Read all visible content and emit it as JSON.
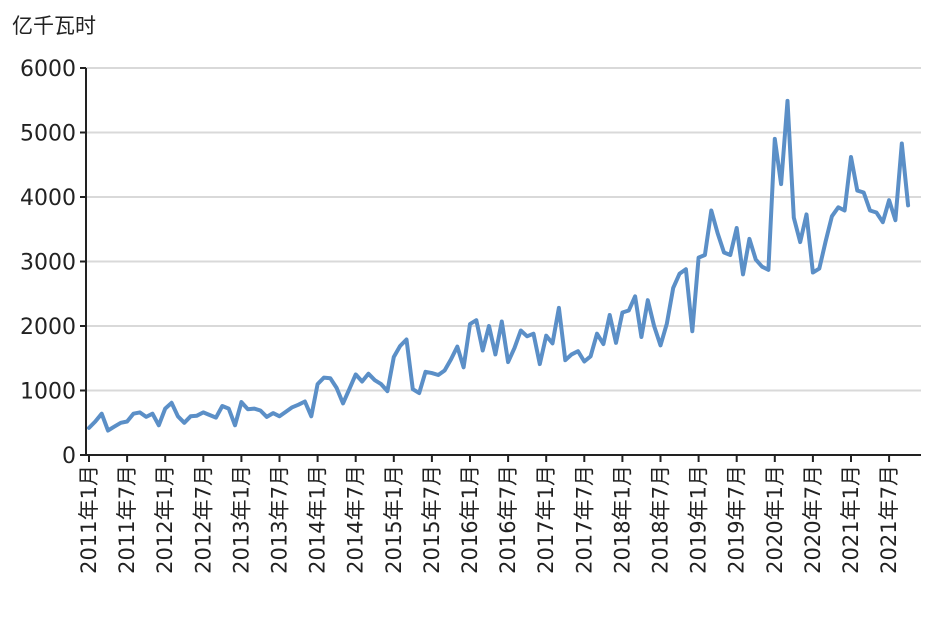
{
  "chart_data": {
    "type": "line",
    "unit_label": "亿千瓦时",
    "ylim": [
      0,
      6000
    ],
    "y_ticks": [
      "0",
      "1000",
      "2000",
      "3000",
      "4000",
      "5000",
      "6000"
    ],
    "y_tick_values": [
      0,
      1000,
      2000,
      3000,
      4000,
      5000,
      6000
    ],
    "grid": true,
    "x_tick_labels": [
      "2011年1月",
      "2011年7月",
      "2012年1月",
      "2012年7月",
      "2013年1月",
      "2013年7月",
      "2014年1月",
      "2014年7月",
      "2015年1月",
      "2015年7月",
      "2016年1月",
      "2016年7月",
      "2017年1月",
      "2017年7月",
      "2018年1月",
      "2018年7月",
      "2019年1月",
      "2019年7月",
      "2020年1月",
      "2020年7月",
      "2021年1月",
      "2021年7月"
    ],
    "line_color": "#5B8FC7",
    "series": [
      {
        "x": [
          "2011-01",
          "2011-02",
          "2011-03",
          "2011-04",
          "2011-05",
          "2011-06",
          "2011-07",
          "2011-08",
          "2011-09",
          "2011-10",
          "2011-11",
          "2011-12",
          "2012-01",
          "2012-02",
          "2012-03",
          "2012-04",
          "2012-05",
          "2012-06",
          "2012-07",
          "2012-08",
          "2012-09",
          "2012-10",
          "2012-11",
          "2012-12",
          "2013-01",
          "2013-02",
          "2013-03",
          "2013-04",
          "2013-05",
          "2013-06",
          "2013-07",
          "2013-08",
          "2013-09",
          "2013-10",
          "2013-11",
          "2013-12",
          "2014-01",
          "2014-02",
          "2014-03",
          "2014-04",
          "2014-05",
          "2014-06",
          "2014-07",
          "2014-08",
          "2014-09",
          "2014-10",
          "2014-11",
          "2014-12",
          "2015-01",
          "2015-02",
          "2015-03",
          "2015-04",
          "2015-05",
          "2015-06",
          "2015-07",
          "2015-08",
          "2015-09",
          "2015-10",
          "2015-11",
          "2015-12",
          "2016-01",
          "2016-02",
          "2016-03",
          "2016-04",
          "2016-05",
          "2016-06",
          "2016-07",
          "2016-08",
          "2016-09",
          "2016-10",
          "2016-11",
          "2016-12",
          "2017-01",
          "2017-02",
          "2017-03",
          "2017-04",
          "2017-05",
          "2017-06",
          "2017-07",
          "2017-08",
          "2017-09",
          "2017-10",
          "2017-11",
          "2017-12",
          "2018-01",
          "2018-02",
          "2018-03",
          "2018-04",
          "2018-05",
          "2018-06",
          "2018-07",
          "2018-08",
          "2018-09",
          "2018-10",
          "2018-11",
          "2018-12",
          "2019-01",
          "2019-02",
          "2019-03",
          "2019-04",
          "2019-05",
          "2019-06",
          "2019-07",
          "2019-08",
          "2019-09",
          "2019-10",
          "2019-11",
          "2019-12",
          "2020-01",
          "2020-02",
          "2020-03",
          "2020-04",
          "2020-05",
          "2020-06",
          "2020-07",
          "2020-08",
          "2020-09",
          "2020-10",
          "2020-11",
          "2020-12",
          "2021-01",
          "2021-02",
          "2021-03",
          "2021-04",
          "2021-05",
          "2021-06",
          "2021-07",
          "2021-08",
          "2021-09",
          "2021-10"
        ],
        "values": [
          420,
          520,
          640,
          380,
          440,
          500,
          520,
          640,
          660,
          590,
          640,
          460,
          720,
          810,
          600,
          500,
          600,
          610,
          660,
          620,
          580,
          760,
          720,
          460,
          820,
          710,
          720,
          690,
          590,
          650,
          600,
          670,
          740,
          780,
          830,
          600,
          1100,
          1200,
          1190,
          1040,
          800,
          1020,
          1250,
          1140,
          1260,
          1160,
          1100,
          990,
          1520,
          1690,
          1790,
          1020,
          960,
          1290,
          1270,
          1240,
          1310,
          1480,
          1680,
          1360,
          2030,
          2090,
          1620,
          2000,
          1560,
          2070,
          1440,
          1660,
          1930,
          1840,
          1880,
          1410,
          1850,
          1730,
          2280,
          1470,
          1560,
          1610,
          1450,
          1530,
          1880,
          1720,
          2170,
          1740,
          2210,
          2240,
          2460,
          1830,
          2400,
          2000,
          1700,
          2040,
          2590,
          2810,
          2880,
          1920,
          3060,
          3100,
          3790,
          3440,
          3140,
          3100,
          3520,
          2800,
          3350,
          3030,
          2920,
          2870,
          4900,
          4200,
          5490,
          3680,
          3300,
          3730,
          2830,
          2890,
          3310,
          3700,
          3840,
          3790,
          4620,
          4100,
          4070,
          3790,
          3760,
          3610,
          3950,
          3640,
          4830,
          3870
        ]
      }
    ]
  }
}
